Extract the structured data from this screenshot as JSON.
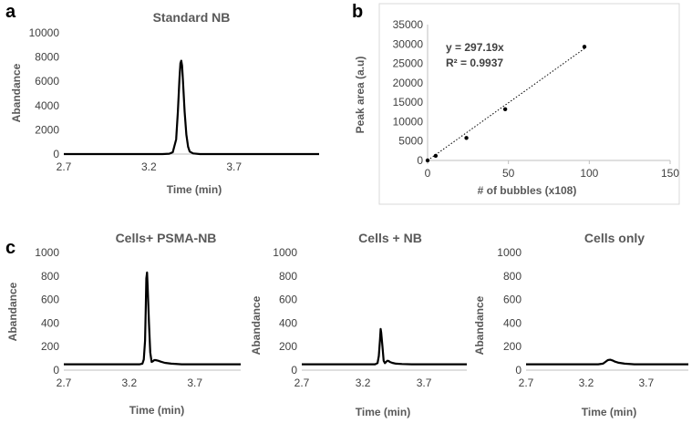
{
  "panel_labels": {
    "a": "a",
    "b": "b",
    "c": "c"
  },
  "colors": {
    "line": "#000000",
    "axis": "#bfbfbf",
    "text": "#404040",
    "panel_label": "#000000",
    "frame": "#d9d9d9"
  },
  "chart_data": [
    {
      "id": "a",
      "type": "line",
      "title": "Standard NB",
      "xlabel": "Time (min)",
      "ylabel": "Abandance",
      "xlim": [
        2.7,
        4.2
      ],
      "ylim": [
        0,
        10000
      ],
      "xticks": [
        "2.7",
        "3.2",
        "3.7"
      ],
      "yticks": [
        "0",
        "2000",
        "4000",
        "6000",
        "8000",
        "10000"
      ],
      "series": [
        {
          "x": [
            2.7,
            3.28,
            3.32,
            3.34,
            3.36,
            3.37,
            3.38,
            3.385,
            3.39,
            3.395,
            3.4,
            3.41,
            3.42,
            3.43,
            3.44,
            3.46,
            3.5,
            4.2
          ],
          "y": [
            0,
            0,
            30,
            150,
            1200,
            3500,
            6300,
            7500,
            7700,
            7300,
            6000,
            3500,
            1600,
            600,
            200,
            50,
            0,
            0
          ]
        }
      ]
    },
    {
      "id": "b",
      "type": "scatter",
      "title": "",
      "xlabel": "# of bubbles (x108)",
      "ylabel": "Peak area (a.u)",
      "xlim": [
        0,
        150
      ],
      "ylim": [
        0,
        35000
      ],
      "xticks": [
        "0",
        "50",
        "100",
        "150"
      ],
      "yticks": [
        "0",
        "5000",
        "10000",
        "15000",
        "20000",
        "25000",
        "30000",
        "35000"
      ],
      "equation": "y = 297.19x",
      "r_squared": "R² = 0.9937",
      "trendline": {
        "slope": 297.19,
        "x": [
          0,
          97
        ]
      },
      "points": [
        {
          "x": 0,
          "y": 0
        },
        {
          "x": 5,
          "y": 1200
        },
        {
          "x": 24,
          "y": 5800
        },
        {
          "x": 48,
          "y": 13200
        },
        {
          "x": 97,
          "y": 29300
        }
      ]
    },
    {
      "id": "c1",
      "type": "line",
      "title": "Cells+ PSMA-NB",
      "xlabel": "Time  (min)",
      "ylabel": "Abandance",
      "xlim": [
        2.7,
        4.05
      ],
      "ylim": [
        0,
        1000
      ],
      "xticks": [
        "2.7",
        "3.2",
        "3.7"
      ],
      "yticks": [
        "0",
        "200",
        "400",
        "600",
        "800",
        "1000"
      ],
      "series": [
        {
          "x": [
            2.7,
            3.28,
            3.3,
            3.31,
            3.32,
            3.325,
            3.33,
            3.335,
            3.34,
            3.35,
            3.36,
            3.37,
            3.38,
            3.39,
            3.4,
            3.42,
            3.44,
            3.47,
            3.52,
            3.6,
            4.05
          ],
          "y": [
            50,
            50,
            55,
            90,
            250,
            500,
            780,
            830,
            700,
            400,
            150,
            70,
            75,
            85,
            85,
            80,
            72,
            62,
            55,
            50,
            50
          ]
        }
      ]
    },
    {
      "id": "c2",
      "type": "line",
      "title": "Cells + NB",
      "xlabel": "Time  (min)",
      "ylabel": "Abandance",
      "xlim": [
        2.7,
        4.05
      ],
      "ylim": [
        0,
        1000
      ],
      "xticks": [
        "2.7",
        "3.2",
        "3.7"
      ],
      "yticks": [
        "0",
        "200",
        "400",
        "600",
        "800",
        "1000"
      ],
      "series": [
        {
          "x": [
            2.7,
            3.3,
            3.32,
            3.33,
            3.34,
            3.345,
            3.35,
            3.36,
            3.37,
            3.38,
            3.39,
            3.4,
            3.41,
            3.42,
            3.44,
            3.47,
            3.52,
            3.6,
            4.05
          ],
          "y": [
            50,
            50,
            60,
            120,
            260,
            350,
            320,
            200,
            80,
            60,
            70,
            80,
            78,
            70,
            62,
            55,
            52,
            50,
            50
          ]
        }
      ]
    },
    {
      "id": "c3",
      "type": "line",
      "title": "Cells only",
      "xlabel": "Time  (min)",
      "ylabel": "Abandance",
      "xlim": [
        2.7,
        4.05
      ],
      "ylim": [
        0,
        1000
      ],
      "xticks": [
        "2.7",
        "3.2",
        "3.7"
      ],
      "yticks": [
        "0",
        "200",
        "400",
        "600",
        "800",
        "1000"
      ],
      "series": [
        {
          "x": [
            2.7,
            3.3,
            3.34,
            3.36,
            3.38,
            3.4,
            3.42,
            3.44,
            3.47,
            3.52,
            3.6,
            4.05
          ],
          "y": [
            50,
            50,
            55,
            70,
            85,
            88,
            82,
            72,
            63,
            55,
            50,
            50
          ]
        }
      ]
    }
  ]
}
